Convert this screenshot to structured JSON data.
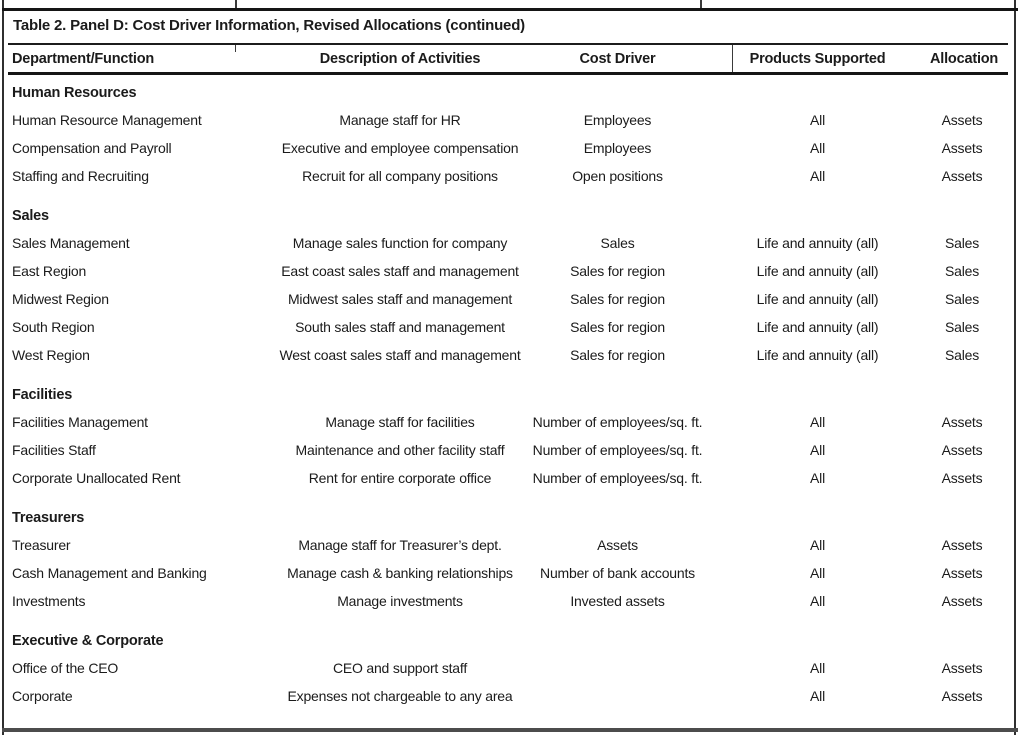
{
  "title": "Table 2. Panel D: Cost Driver Information, Revised Allocations (continued)",
  "columns": [
    "Department/Function",
    "Description of Activities",
    "Cost Driver",
    "Products Supported",
    "Allocation"
  ],
  "sections": [
    {
      "name": "Human Resources",
      "rows": [
        [
          "Human Resource Management",
          "Manage staff for HR",
          "Employees",
          "All",
          "Assets"
        ],
        [
          "Compensation and Payroll",
          "Executive and employee compensation",
          "Employees",
          "All",
          "Assets"
        ],
        [
          "Staffing and Recruiting",
          "Recruit for all company positions",
          "Open positions",
          "All",
          "Assets"
        ]
      ]
    },
    {
      "name": "Sales",
      "rows": [
        [
          "Sales Management",
          "Manage sales function for company",
          "Sales",
          "Life and annuity (all)",
          "Sales"
        ],
        [
          "East Region",
          "East coast sales staff and management",
          "Sales for region",
          "Life and annuity (all)",
          "Sales"
        ],
        [
          "Midwest Region",
          "Midwest sales staff and management",
          "Sales for region",
          "Life and annuity (all)",
          "Sales"
        ],
        [
          "South Region",
          "South sales staff and management",
          "Sales for region",
          "Life and annuity (all)",
          "Sales"
        ],
        [
          "West Region",
          "West coast sales staff and management",
          "Sales for region",
          "Life and annuity (all)",
          "Sales"
        ]
      ]
    },
    {
      "name": "Facilities",
      "rows": [
        [
          "Facilities Management",
          "Manage staff for facilities",
          "Number of employees/sq. ft.",
          "All",
          "Assets"
        ],
        [
          "Facilities Staff",
          "Maintenance and other facility staff",
          "Number of employees/sq. ft.",
          "All",
          "Assets"
        ],
        [
          "Corporate Unallocated Rent",
          "Rent for entire corporate office",
          "Number of employees/sq. ft.",
          "All",
          "Assets"
        ]
      ]
    },
    {
      "name": "Treasurers",
      "rows": [
        [
          "Treasurer",
          "Manage staff for Treasurer’s dept.",
          "Assets",
          "All",
          "Assets"
        ],
        [
          "Cash Management and Banking",
          "Manage cash & banking relationships",
          "Number of bank accounts",
          "All",
          "Assets"
        ],
        [
          "Investments",
          "Manage investments",
          "Invested assets",
          "All",
          "Assets"
        ]
      ]
    },
    {
      "name": "Executive & Corporate",
      "rows": [
        [
          "Office of the CEO",
          "CEO and support staff",
          "",
          "All",
          "Assets"
        ],
        [
          "Corporate",
          "Expenses not chargeable to any area",
          "",
          "All",
          "Assets"
        ]
      ]
    }
  ]
}
